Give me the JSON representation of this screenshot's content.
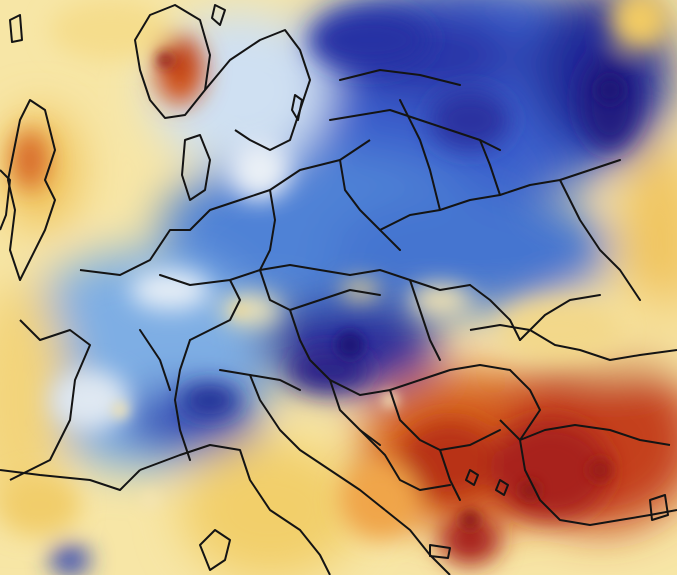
{
  "map": {
    "type": "temperature-anomaly-heatmap",
    "region": "Europe",
    "palette": {
      "deep_cold": "#201a8c",
      "cold": "#2f54c8",
      "mid_cold": "#5f92dc",
      "light_cold": "#b8d4f0",
      "neutral": "#f4f2ea",
      "light_warm": "#f7e29a",
      "warm": "#efc35a",
      "hot": "#e07a2a",
      "very_hot": "#c2401c",
      "extreme": "#8e1a14"
    },
    "border_color": "#141414",
    "has_legend": false,
    "has_title": false
  }
}
